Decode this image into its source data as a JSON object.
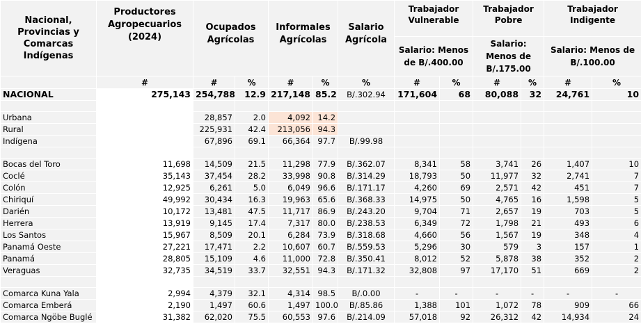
{
  "headers": {
    "region": "Nacional, Provincias y Comarcas Indígenas",
    "productores": "Productores Agropecuarios (2024)",
    "ocupados": "Ocupados Agrícolas",
    "informales": "Informales Agrícolas",
    "salario": "Salario Agrícola",
    "vulnerable": "Trabajador Vulnerable",
    "pobre": "Trabajador Pobre",
    "indigente": "Trabajador Indigente",
    "vulnerable_sub": "Salario: Menos de B/.400.00",
    "pobre_sub": "Salario: Menos de B/.175.00",
    "indigente_sub": "Salario: Menos de B/.100.00",
    "sym_num": "#",
    "sym_pct": "%"
  },
  "nacional": [
    "NACIONAL",
    "275,143",
    "254,788",
    "12.9",
    "217,148",
    "85.2",
    "B/.302.94",
    "171,604",
    "68",
    "80,088",
    "32",
    "24,761",
    "10"
  ],
  "area": [
    [
      "Urbana",
      "",
      "28,857",
      "2.0",
      "4,092",
      "14.2",
      "",
      "",
      "",
      "",
      "",
      "",
      ""
    ],
    [
      "Rural",
      "",
      "225,931",
      "42.4",
      "213,056",
      "94.3",
      "",
      "",
      "",
      "",
      "",
      "",
      ""
    ],
    [
      "Indígena",
      "",
      "67,896",
      "69.1",
      "66,364",
      "97.7",
      "B/.99.98",
      "",
      "",
      "",
      "",
      "",
      ""
    ]
  ],
  "provincias": [
    [
      "Bocas del Toro",
      "11,698",
      "14,509",
      "21.5",
      "11,298",
      "77.9",
      "B/.362.07",
      "8,341",
      "58",
      "3,741",
      "26",
      "1,407",
      "10"
    ],
    [
      "Coclé",
      "35,143",
      "37,454",
      "28.2",
      "33,998",
      "90.8",
      "B/.314.29",
      "18,793",
      "50",
      "11,977",
      "32",
      "2,741",
      "7"
    ],
    [
      "Colón",
      "12,925",
      "6,261",
      "5.0",
      "6,049",
      "96.6",
      "B/.171.17",
      "4,260",
      "69",
      "2,571",
      "42",
      "451",
      "7"
    ],
    [
      "Chiriquí",
      "49,992",
      "30,434",
      "16.3",
      "19,963",
      "65.6",
      "B/.368.33",
      "14,975",
      "50",
      "4,765",
      "16",
      "1,598",
      "5"
    ],
    [
      "Darién",
      "10,172",
      "13,481",
      "47.5",
      "11,717",
      "86.9",
      "B/.243.20",
      "9,704",
      "71",
      "2,657",
      "19",
      "703",
      "5"
    ],
    [
      "Herrera",
      "13,919",
      "9,145",
      "17.4",
      "7,317",
      "80.0",
      "B/.238.53",
      "6,349",
      "72",
      "1,798",
      "21",
      "493",
      "6"
    ],
    [
      "Los Santos",
      "15,967",
      "8,509",
      "20.1",
      "6,284",
      "73.9",
      "B/.318.68",
      "4,660",
      "56",
      "1,567",
      "19",
      "348",
      "4"
    ],
    [
      "Panamá Oeste",
      "27,221",
      "17,471",
      "2.2",
      "10,607",
      "60.7",
      "B/.559.53",
      "5,296",
      "30",
      "579",
      "3",
      "157",
      "1"
    ],
    [
      "Panamá",
      "28,805",
      "15,109",
      "4.6",
      "11,000",
      "72.8",
      "B/.350.41",
      "8,012",
      "52",
      "5,878",
      "38",
      "352",
      "2"
    ],
    [
      "Veraguas",
      "32,735",
      "34,519",
      "33.7",
      "32,551",
      "94.3",
      "B/.171.32",
      "32,808",
      "97",
      "17,170",
      "51",
      "669",
      "2"
    ]
  ],
  "comarcas": [
    [
      "Comarca Kuna Yala",
      "2,994",
      "4,379",
      "32.1",
      "4,314",
      "98.5",
      "B/.0.00",
      "-",
      "-",
      "-",
      "-",
      "-",
      "-"
    ],
    [
      "Comarca Emberá",
      "2,190",
      "1,497",
      "60.6",
      "1,497",
      "100.0",
      "B/.85.86",
      "1,388",
      "101",
      "1,072",
      "78",
      "909",
      "66"
    ],
    [
      "Comarca Ngöbe Buglé",
      "31,382",
      "62,020",
      "75.5",
      "60,553",
      "97.6",
      "B/.214.09",
      "57,018",
      "92",
      "26,312",
      "42",
      "14,934",
      "24"
    ]
  ]
}
